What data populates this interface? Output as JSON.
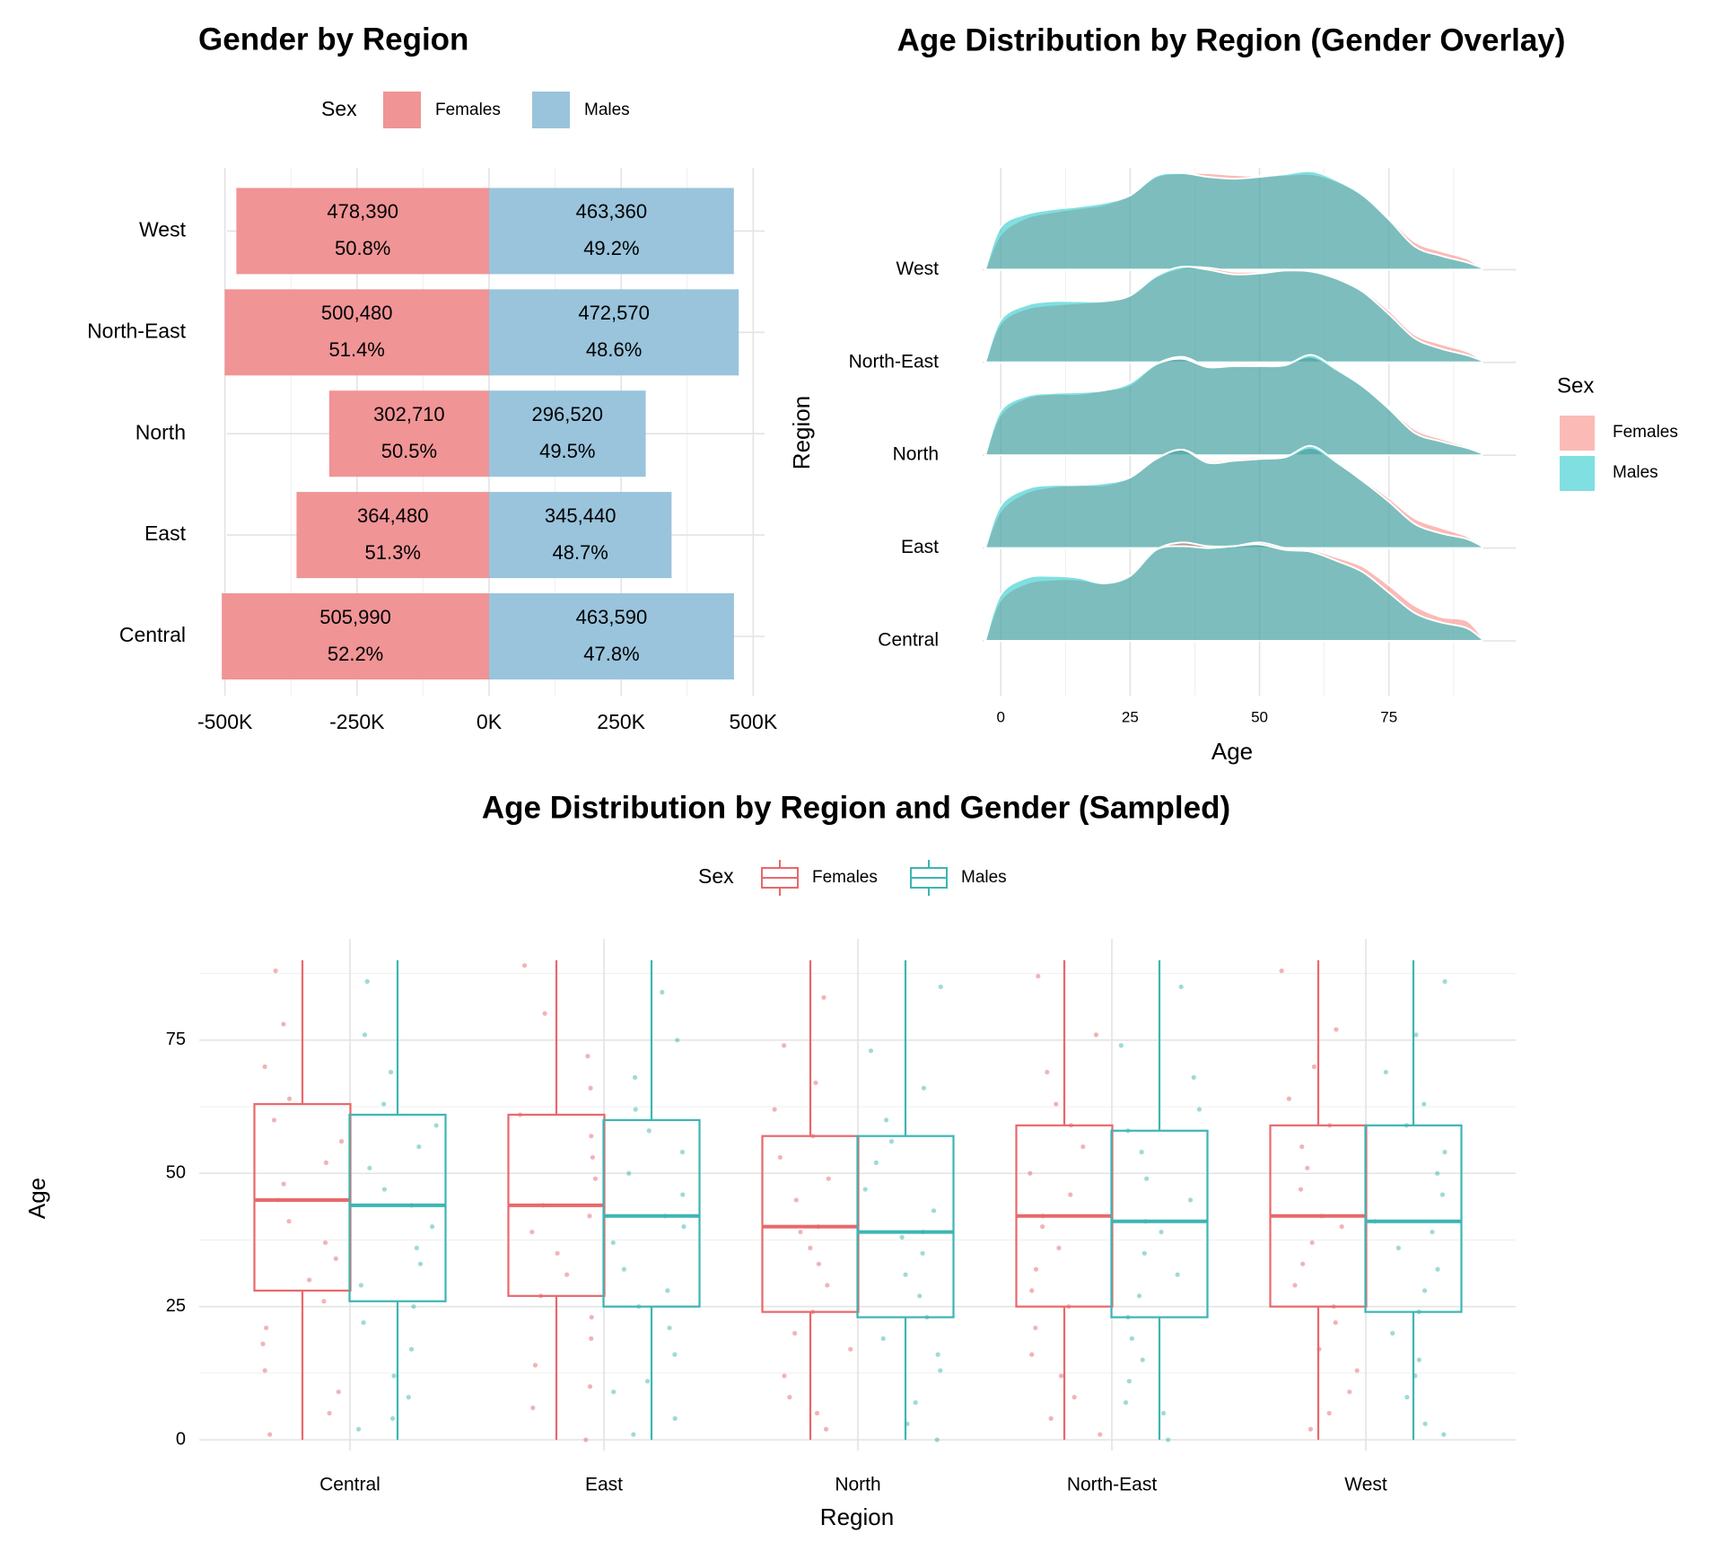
{
  "chart_data": [
    {
      "type": "diverging-bar",
      "title": "Gender by Region",
      "legend_title": "Sex",
      "legend": "top",
      "grid": true,
      "categories": [
        "Central",
        "East",
        "North",
        "North-East",
        "West"
      ],
      "series": [
        {
          "name": "Females",
          "color": "#f09496",
          "values": [
            -505990,
            -364480,
            -302710,
            -500480,
            -478390
          ],
          "value_labels": [
            "505,990",
            "364,480",
            "302,710",
            "500,480",
            "478,390"
          ],
          "share_labels": [
            "52.2%",
            "51.3%",
            "50.5%",
            "51.4%",
            "50.8%"
          ]
        },
        {
          "name": "Males",
          "color": "#99c4dc",
          "values": [
            463590,
            345440,
            296520,
            472570,
            463360
          ],
          "value_labels": [
            "463,590",
            "345,440",
            "296,520",
            "472,570",
            "463,360"
          ],
          "share_labels": [
            "47.8%",
            "48.7%",
            "49.5%",
            "48.6%",
            "49.2%"
          ]
        }
      ],
      "xlim": [
        -530000,
        530000
      ],
      "xticks": [
        {
          "value": -500000,
          "label": "-500K"
        },
        {
          "value": -250000,
          "label": "-250K"
        },
        {
          "value": 0,
          "label": "0K"
        },
        {
          "value": 250000,
          "label": "250K"
        },
        {
          "value": 500000,
          "label": "500K"
        }
      ]
    },
    {
      "type": "ridgeline",
      "title": "Age Distribution by Region (Gender Overlay)",
      "x_label": "Age",
      "y_label": "Region",
      "legend_title": "Sex",
      "legend": "right",
      "grid": true,
      "categories": [
        "Central",
        "East",
        "North",
        "North-East",
        "West"
      ],
      "x": [
        -3,
        0,
        5,
        10,
        15,
        20,
        25,
        30,
        35,
        40,
        45,
        50,
        55,
        60,
        65,
        70,
        75,
        80,
        85,
        90,
        93
      ],
      "series": [
        {
          "name": "Females",
          "color": "#f8766d",
          "values": [
            [
              0,
              0.44,
              0.62,
              0.66,
              0.66,
              0.62,
              0.7,
              0.98,
              1.06,
              1.02,
              1.02,
              1.06,
              1.0,
              0.98,
              0.9,
              0.8,
              0.6,
              0.38,
              0.26,
              0.22,
              0.04
            ],
            [
              0,
              0.4,
              0.6,
              0.66,
              0.68,
              0.68,
              0.76,
              0.96,
              1.06,
              0.94,
              0.96,
              0.98,
              0.98,
              1.08,
              0.92,
              0.74,
              0.54,
              0.32,
              0.22,
              0.13,
              0.03
            ],
            [
              0,
              0.44,
              0.62,
              0.66,
              0.66,
              0.7,
              0.76,
              0.98,
              1.06,
              0.96,
              0.98,
              0.98,
              0.98,
              1.06,
              0.92,
              0.76,
              0.52,
              0.28,
              0.18,
              0.1,
              0.02
            ],
            [
              0,
              0.42,
              0.58,
              0.62,
              0.64,
              0.66,
              0.72,
              0.92,
              1.02,
              1.02,
              0.98,
              0.98,
              1.0,
              0.98,
              0.92,
              0.78,
              0.56,
              0.3,
              0.2,
              0.12,
              0.03
            ],
            [
              0,
              0.38,
              0.56,
              0.62,
              0.66,
              0.7,
              0.8,
              1.0,
              1.04,
              1.04,
              1.02,
              1.01,
              1.02,
              1.03,
              0.95,
              0.8,
              0.56,
              0.3,
              0.2,
              0.12,
              0.02
            ]
          ]
        },
        {
          "name": "Males",
          "color": "#00bfc4",
          "values": [
            [
              0,
              0.5,
              0.68,
              0.7,
              0.68,
              0.62,
              0.7,
              0.98,
              1.02,
              1.0,
              1.02,
              1.04,
              0.98,
              0.96,
              0.86,
              0.74,
              0.52,
              0.3,
              0.2,
              0.14,
              0.02
            ],
            [
              0,
              0.46,
              0.64,
              0.68,
              0.68,
              0.7,
              0.76,
              0.96,
              1.06,
              0.92,
              0.94,
              0.96,
              0.98,
              1.1,
              0.92,
              0.72,
              0.5,
              0.26,
              0.16,
              0.1,
              0.02
            ],
            [
              0,
              0.48,
              0.64,
              0.67,
              0.68,
              0.7,
              0.78,
              0.98,
              1.04,
              0.95,
              0.96,
              0.96,
              0.97,
              1.08,
              0.92,
              0.74,
              0.5,
              0.24,
              0.15,
              0.08,
              0.02
            ],
            [
              0,
              0.46,
              0.62,
              0.66,
              0.66,
              0.66,
              0.72,
              0.93,
              1.03,
              1.0,
              0.95,
              0.96,
              0.99,
              0.98,
              0.9,
              0.76,
              0.52,
              0.26,
              0.15,
              0.08,
              0.02
            ],
            [
              0,
              0.46,
              0.6,
              0.65,
              0.68,
              0.72,
              0.8,
              1.01,
              1.04,
              1.0,
              0.98,
              1.0,
              1.03,
              1.06,
              0.96,
              0.8,
              0.54,
              0.25,
              0.15,
              0.08,
              0.02
            ]
          ]
        }
      ],
      "xlim": [
        -3.5,
        99.5
      ],
      "xticks": [
        0,
        25,
        50,
        75
      ]
    },
    {
      "type": "box",
      "title": "Age Distribution by Region and Gender (Sampled)",
      "x_label": "Region",
      "y_label": "Age",
      "legend_title": "Sex",
      "legend": "top",
      "grid": true,
      "categories": [
        "Central",
        "East",
        "North",
        "North-East",
        "West"
      ],
      "series": [
        {
          "name": "Females",
          "color": "#e8686b",
          "boxes": [
            {
              "min": 0,
              "q1": 28,
              "median": 45,
              "q3": 63,
              "max": 90,
              "points": [
                1,
                5,
                9,
                13,
                18,
                21,
                26,
                30,
                34,
                37,
                41,
                45,
                48,
                52,
                56,
                60,
                64,
                70,
                78,
                88
              ]
            },
            {
              "min": 0,
              "q1": 27,
              "median": 44,
              "q3": 61,
              "max": 90,
              "points": [
                0,
                6,
                10,
                14,
                19,
                23,
                27,
                31,
                35,
                39,
                42,
                44,
                49,
                53,
                57,
                61,
                66,
                72,
                80,
                89
              ]
            },
            {
              "min": 0,
              "q1": 24,
              "median": 40,
              "q3": 57,
              "max": 90,
              "points": [
                2,
                5,
                8,
                12,
                17,
                20,
                24,
                29,
                33,
                36,
                39,
                40,
                45,
                49,
                53,
                57,
                62,
                67,
                74,
                83
              ]
            },
            {
              "min": 0,
              "q1": 25,
              "median": 42,
              "q3": 59,
              "max": 90,
              "points": [
                1,
                4,
                8,
                12,
                16,
                21,
                25,
                28,
                32,
                36,
                40,
                42,
                46,
                50,
                55,
                59,
                63,
                69,
                76,
                87
              ]
            },
            {
              "min": 0,
              "q1": 25,
              "median": 42,
              "q3": 59,
              "max": 90,
              "points": [
                2,
                5,
                9,
                13,
                17,
                22,
                25,
                29,
                33,
                37,
                40,
                42,
                47,
                51,
                55,
                59,
                64,
                70,
                77,
                88
              ]
            }
          ]
        },
        {
          "name": "Males",
          "color": "#3db5b3",
          "boxes": [
            {
              "min": 0,
              "q1": 26,
              "median": 44,
              "q3": 61,
              "max": 90,
              "points": [
                2,
                4,
                8,
                12,
                17,
                22,
                25,
                29,
                33,
                36,
                40,
                44,
                47,
                51,
                55,
                59,
                63,
                69,
                76,
                86
              ]
            },
            {
              "min": 0,
              "q1": 25,
              "median": 42,
              "q3": 60,
              "max": 90,
              "points": [
                1,
                4,
                9,
                11,
                16,
                21,
                25,
                28,
                32,
                37,
                40,
                42,
                46,
                50,
                54,
                58,
                62,
                68,
                75,
                84
              ]
            },
            {
              "min": 0,
              "q1": 23,
              "median": 39,
              "q3": 57,
              "max": 90,
              "points": [
                0,
                3,
                7,
                13,
                16,
                19,
                23,
                27,
                31,
                35,
                38,
                39,
                43,
                47,
                52,
                56,
                60,
                66,
                73,
                85
              ]
            },
            {
              "min": 0,
              "q1": 23,
              "median": 41,
              "q3": 58,
              "max": 90,
              "points": [
                0,
                5,
                7,
                11,
                15,
                19,
                23,
                27,
                31,
                35,
                39,
                41,
                45,
                49,
                54,
                58,
                62,
                68,
                74,
                85
              ]
            },
            {
              "min": 0,
              "q1": 24,
              "median": 41,
              "q3": 59,
              "max": 90,
              "points": [
                1,
                3,
                8,
                12,
                15,
                20,
                24,
                28,
                32,
                36,
                39,
                41,
                46,
                50,
                54,
                59,
                63,
                69,
                76,
                86
              ]
            }
          ]
        }
      ],
      "ylim": [
        -2,
        94
      ],
      "yticks": [
        0,
        25,
        50,
        75
      ]
    }
  ]
}
